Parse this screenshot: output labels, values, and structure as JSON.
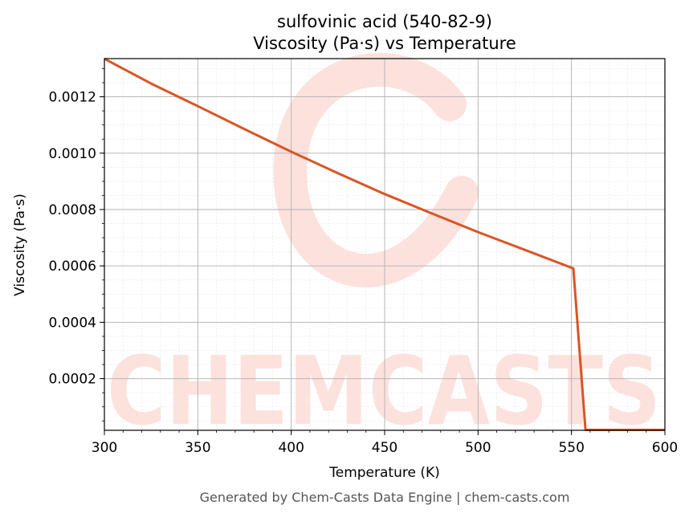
{
  "chart_data": {
    "type": "line",
    "title_line1": "sulfovinic acid (540-82-9)",
    "title_line2": "Viscosity (Pa·s) vs Temperature",
    "xlabel": "Temperature (K)",
    "ylabel": "Viscosity (Pa·s)",
    "xlim": [
      300,
      600
    ],
    "ylim": [
      1.67e-05,
      0.0013355
    ],
    "x_ticks": [
      300,
      350,
      400,
      450,
      500,
      550,
      600
    ],
    "x_tick_labels": [
      "300",
      "350",
      "400",
      "450",
      "500",
      "550",
      "600"
    ],
    "y_ticks": [
      0.0002,
      0.0004,
      0.0006,
      0.0008,
      0.001,
      0.0012
    ],
    "y_tick_labels": [
      "0.0002",
      "0.0004",
      "0.0006",
      "0.0008",
      "0.0010",
      "0.0012"
    ],
    "grid": true,
    "line_color": "#d95525",
    "series": [
      {
        "x": [
          300,
          325,
          350,
          375,
          400,
          425,
          450,
          475,
          500,
          525,
          551,
          557.5,
          570,
          585,
          600
        ],
        "values": [
          0.001335,
          0.001247,
          0.001167,
          0.001085,
          0.001005,
          0.000929,
          0.000855,
          0.000787,
          0.00072,
          0.000657,
          0.000591,
          1.8e-05,
          1.8e-05,
          1.8e-05,
          1.8e-05
        ]
      }
    ]
  },
  "watermark": {
    "text": "CHEMCASTS",
    "color": "#fde1dc"
  },
  "footer": "Generated by Chem-Casts Data Engine | chem-casts.com"
}
